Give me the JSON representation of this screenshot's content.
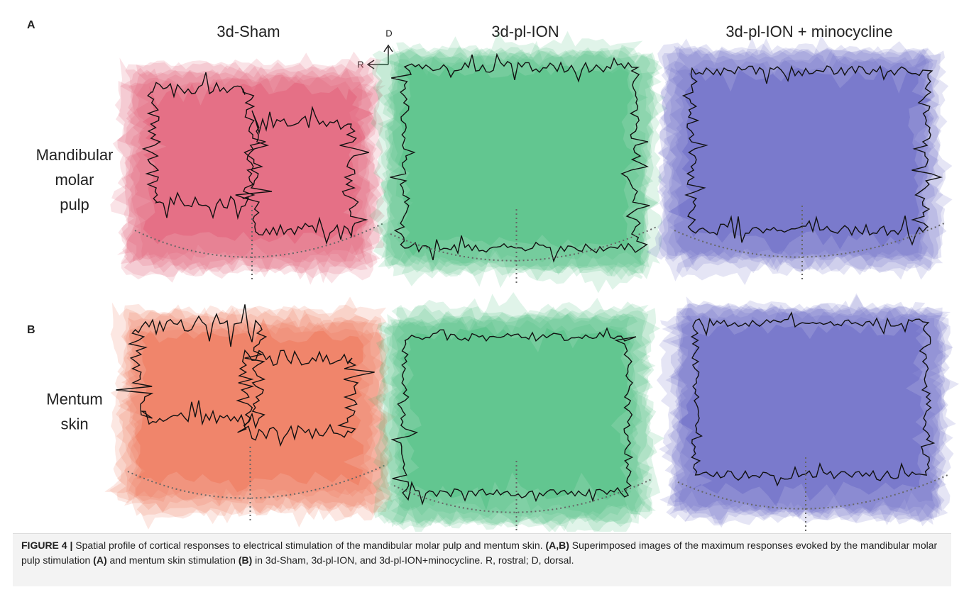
{
  "figure": {
    "panel_labels": [
      "A",
      "B"
    ],
    "columns": [
      "3d-Sham",
      "3d-pl-ION",
      "3d-pl-ION + minocycline"
    ],
    "orientation": {
      "dorsal": "D",
      "rostral": "R"
    },
    "rows": [
      {
        "label_lines": [
          "Mandibular",
          "molar",
          "pulp"
        ]
      },
      {
        "label_lines": [
          "Mentum",
          "skin"
        ]
      }
    ]
  },
  "caption": {
    "runs": [
      {
        "text": "FIGURE 4 | ",
        "bold": true
      },
      {
        "text": "Spatial profile of cortical responses to electrical stimulation of the mandibular molar pulp and mentum skin. ",
        "bold": false
      },
      {
        "text": "(A,B)",
        "bold": true
      },
      {
        "text": " Superimposed images of the maximum responses evoked by the mandibular molar pulp stimulation ",
        "bold": false
      },
      {
        "text": "(A)",
        "bold": true
      },
      {
        "text": " and mentum skin stimulation ",
        "bold": false
      },
      {
        "text": "(B)",
        "bold": true
      },
      {
        "text": " in 3d-Sham, 3d-pl-ION, and 3d-pl-ION+minocycline. R, rostral; D, dorsal.",
        "bold": false
      }
    ]
  }
}
